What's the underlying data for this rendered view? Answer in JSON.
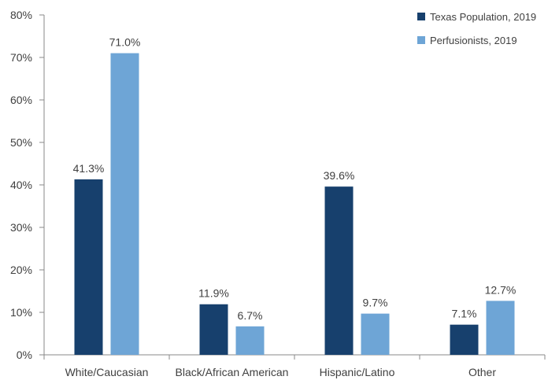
{
  "chart_data": {
    "type": "bar",
    "categories": [
      "White/Caucasian",
      "Black/African American",
      "Hispanic/Latino",
      "Other"
    ],
    "series": [
      {
        "name": "Texas Population, 2019",
        "values": [
          41.3,
          11.9,
          39.6,
          7.1
        ],
        "labels": [
          "41.3%",
          "11.9%",
          "39.6%",
          "7.1%"
        ],
        "color": "#17406d"
      },
      {
        "name": "Perfusionists, 2019",
        "values": [
          71.0,
          6.7,
          9.7,
          12.7
        ],
        "labels": [
          "71.0%",
          "6.7%",
          "9.7%",
          "12.7%"
        ],
        "color": "#6ea5d6"
      }
    ],
    "yticks": [
      "0%",
      "10%",
      "20%",
      "30%",
      "40%",
      "50%",
      "60%",
      "70%",
      "80%"
    ],
    "ylim": [
      0,
      80
    ],
    "grid": false,
    "legend_position": "top-right",
    "axis_color": "#888888",
    "text_color": "#404040"
  }
}
